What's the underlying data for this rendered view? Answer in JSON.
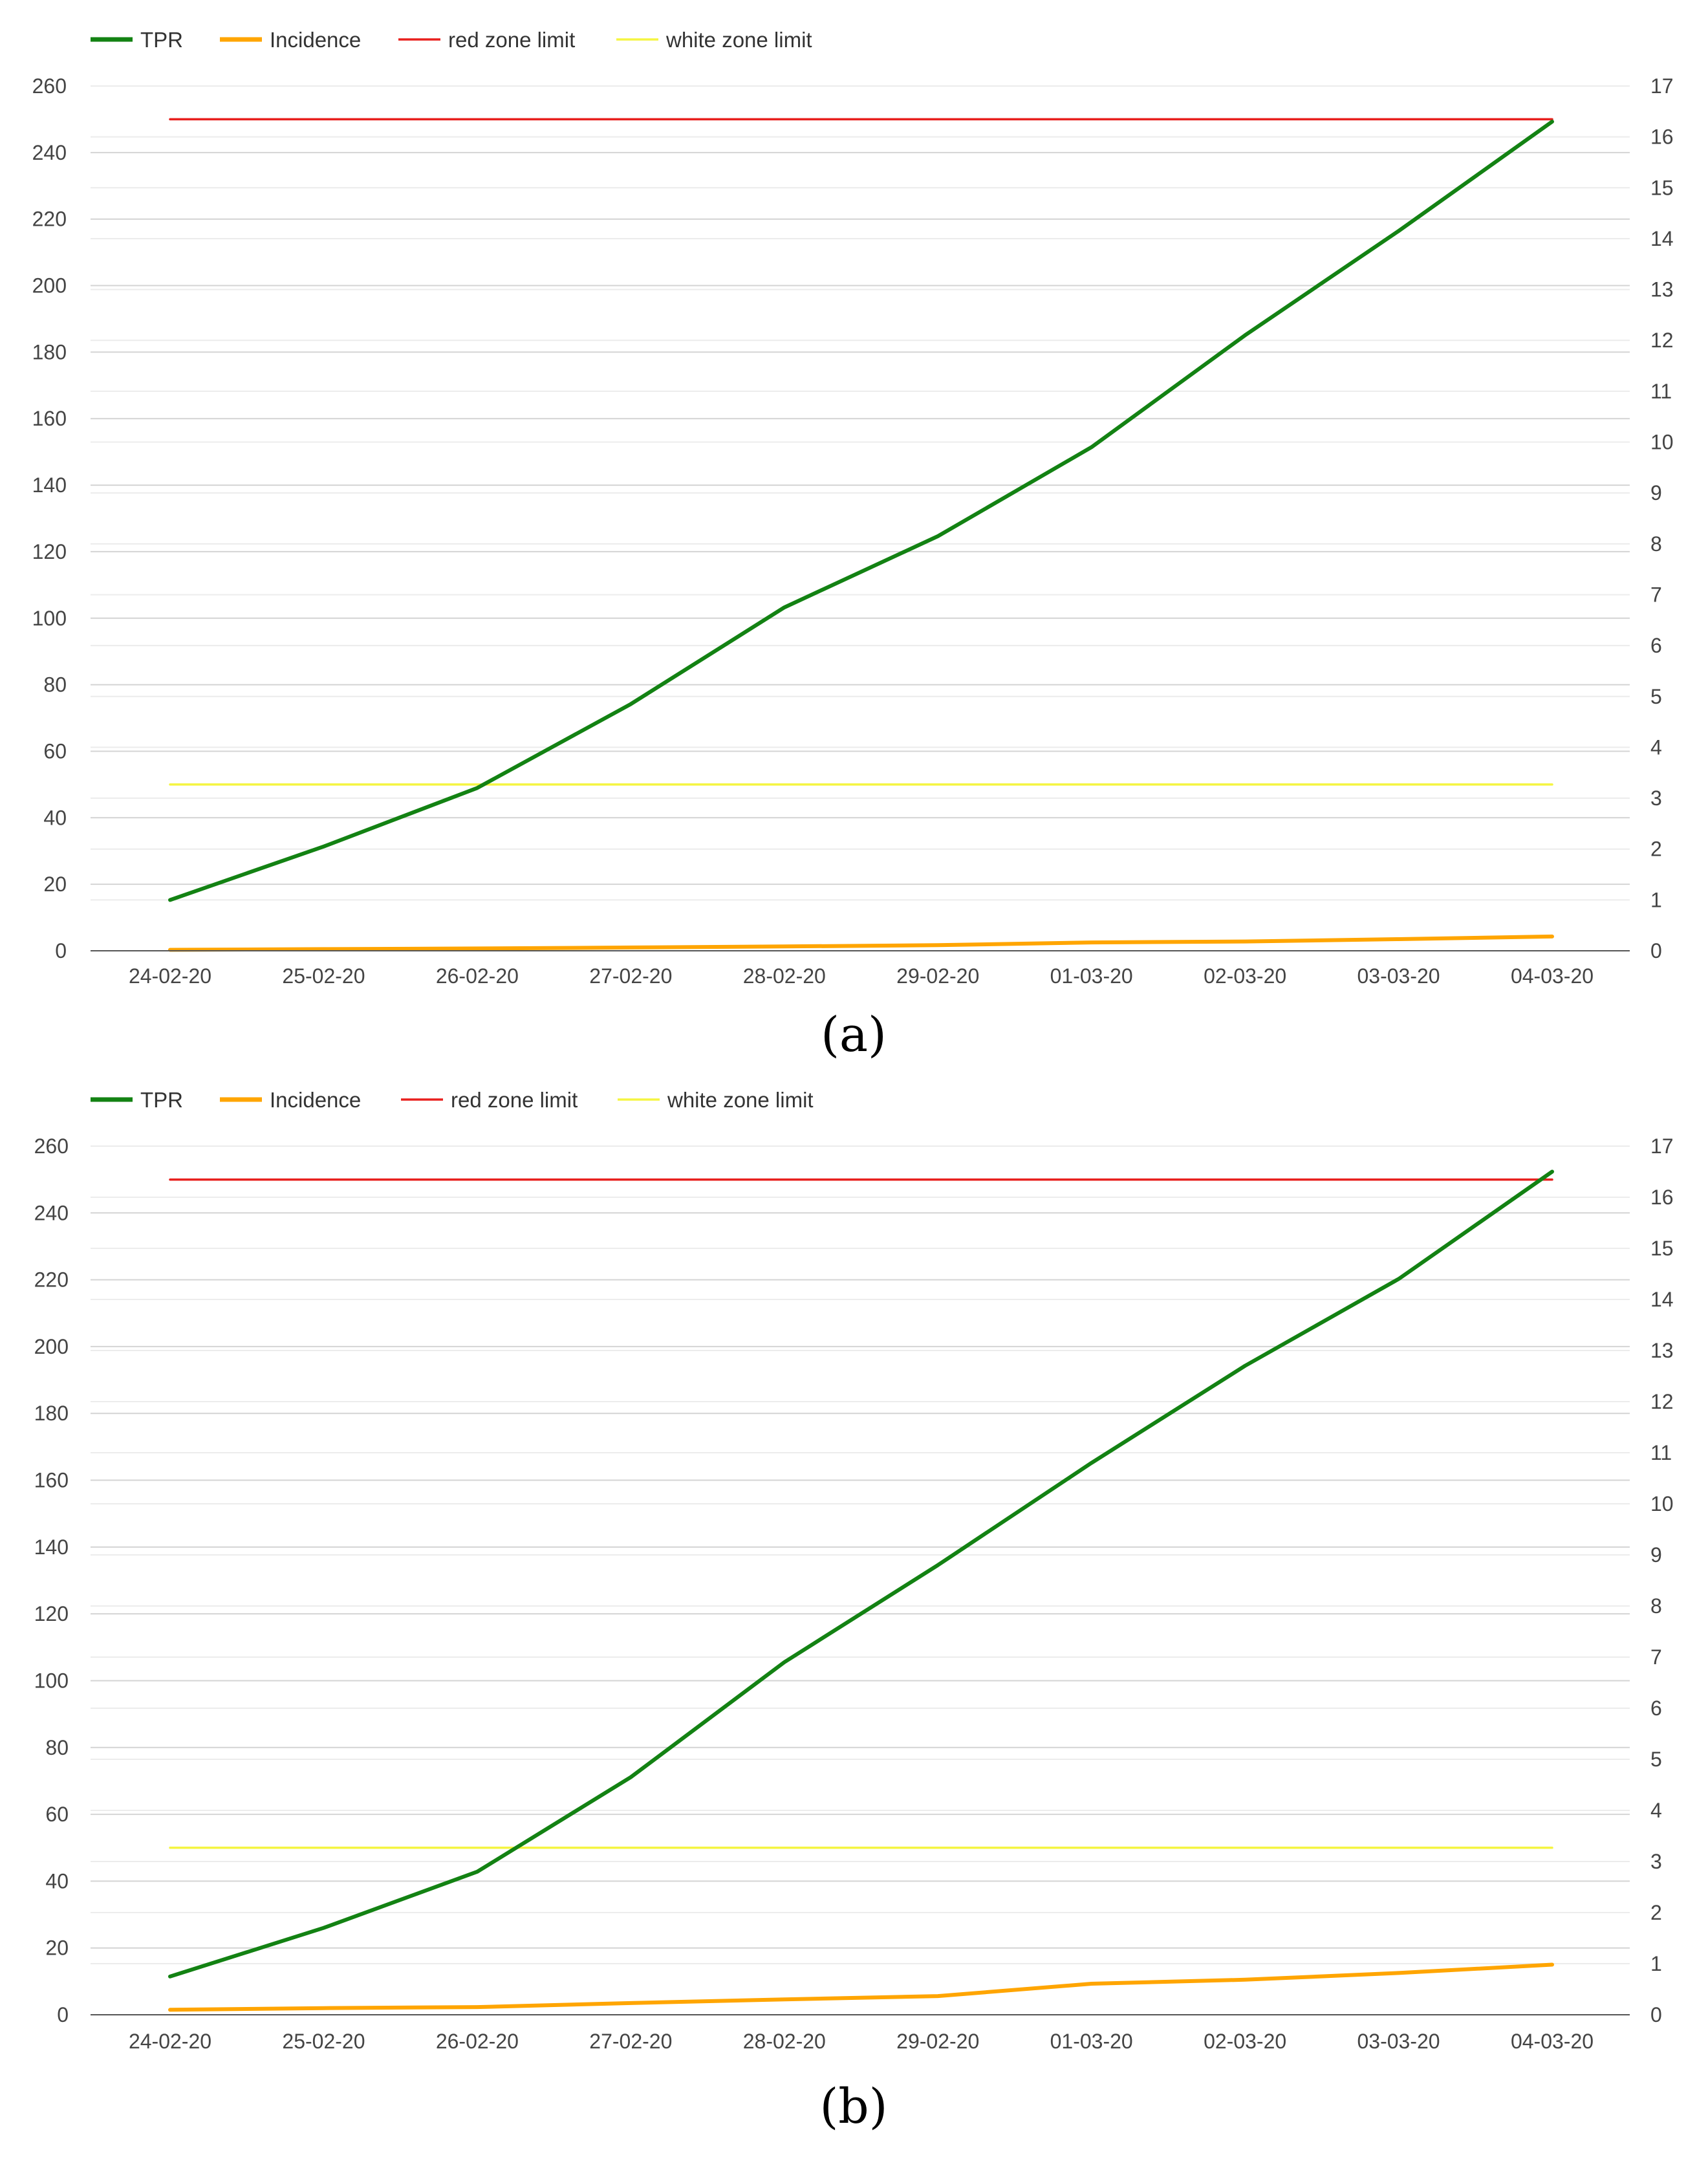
{
  "chart_data": [
    {
      "type": "line",
      "caption": "(a)",
      "categories": [
        "24-02-20",
        "25-02-20",
        "26-02-20",
        "27-02-20",
        "28-02-20",
        "29-02-20",
        "01-03-20",
        "02-03-20",
        "03-03-20",
        "04-03-20"
      ],
      "left_axis": {
        "ylim": [
          0,
          260
        ],
        "ticks": [
          0,
          20,
          40,
          60,
          80,
          100,
          120,
          140,
          160,
          180,
          200,
          220,
          240,
          260
        ]
      },
      "right_axis": {
        "ylim": [
          0,
          17
        ],
        "ticks": [
          0,
          1,
          2,
          3,
          4,
          5,
          6,
          7,
          8,
          9,
          10,
          11,
          12,
          13,
          14,
          15,
          16,
          17
        ]
      },
      "grid": true,
      "legend_position": "top-left",
      "series": [
        {
          "name": "TPR",
          "axis": "right",
          "color": "#138213",
          "values": [
            1.0,
            2.05,
            3.2,
            4.85,
            6.75,
            8.15,
            9.9,
            12.1,
            14.15,
            16.3
          ]
        },
        {
          "name": "Incidence",
          "axis": "left",
          "color": "#FFA500",
          "values": [
            0.3,
            0.5,
            0.7,
            1.0,
            1.3,
            1.7,
            2.5,
            2.8,
            3.5,
            4.3
          ]
        },
        {
          "name": "red zone limit",
          "axis": "left",
          "color": "#E8201E",
          "values": [
            250,
            250,
            250,
            250,
            250,
            250,
            250,
            250,
            250,
            250
          ]
        },
        {
          "name": "white zone limit",
          "axis": "left",
          "color": "#F5F542",
          "values": [
            50,
            50,
            50,
            50,
            50,
            50,
            50,
            50,
            50,
            50
          ]
        }
      ]
    },
    {
      "type": "line",
      "caption": "(b)",
      "categories": [
        "24-02-20",
        "25-02-20",
        "26-02-20",
        "27-02-20",
        "28-02-20",
        "29-02-20",
        "01-03-20",
        "02-03-20",
        "03-03-20",
        "04-03-20"
      ],
      "left_axis": {
        "ylim": [
          0,
          260
        ],
        "ticks": [
          0,
          20,
          40,
          60,
          80,
          100,
          120,
          140,
          160,
          180,
          200,
          220,
          240,
          260
        ]
      },
      "right_axis": {
        "ylim": [
          0,
          17
        ],
        "ticks": [
          0,
          1,
          2,
          3,
          4,
          5,
          6,
          7,
          8,
          9,
          10,
          11,
          12,
          13,
          14,
          15,
          16,
          17
        ]
      },
      "grid": true,
      "legend_position": "top-left",
      "series": [
        {
          "name": "TPR",
          "axis": "right",
          "color": "#138213",
          "values": [
            0.75,
            1.7,
            2.8,
            4.65,
            6.9,
            8.8,
            10.8,
            12.7,
            14.4,
            16.5
          ]
        },
        {
          "name": "Incidence",
          "axis": "left",
          "color": "#FFA500",
          "values": [
            1.5,
            2.0,
            2.3,
            3.5,
            4.6,
            5.6,
            9.3,
            10.5,
            12.5,
            15.0
          ]
        },
        {
          "name": "red zone limit",
          "axis": "left",
          "color": "#E8201E",
          "values": [
            250,
            250,
            250,
            250,
            250,
            250,
            250,
            250,
            250,
            250
          ]
        },
        {
          "name": "white zone limit",
          "axis": "left",
          "color": "#F5F542",
          "values": [
            50,
            50,
            50,
            50,
            50,
            50,
            50,
            50,
            50,
            50
          ]
        }
      ]
    }
  ]
}
